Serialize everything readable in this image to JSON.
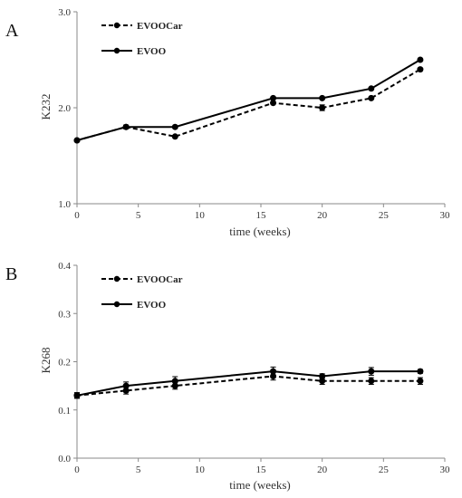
{
  "chart_data": [
    {
      "type": "line",
      "panel_label": "A",
      "xlabel": "time  (weeks)",
      "ylabel": "K232",
      "xlim": [
        0,
        30
      ],
      "ylim": [
        1.0,
        3.0
      ],
      "xticks": [
        0,
        5,
        10,
        15,
        20,
        25,
        30
      ],
      "yticks": [
        1.0,
        2.0,
        3.0
      ],
      "ytick_labels": [
        "1.0",
        "2.0",
        "3.0"
      ],
      "legend_position": "top-left",
      "grid": false,
      "x": [
        0,
        4,
        8,
        16,
        20,
        24,
        28
      ],
      "series": [
        {
          "name": "EVOOCar",
          "style": "dashed",
          "color": "#000000",
          "values": [
            1.66,
            1.8,
            1.7,
            2.05,
            2.0,
            2.1,
            2.4
          ],
          "errors": [
            0.01,
            0.01,
            0.01,
            0.01,
            0.03,
            0.01,
            0.01
          ]
        },
        {
          "name": "EVOO",
          "style": "solid",
          "color": "#000000",
          "values": [
            1.66,
            1.8,
            1.8,
            2.1,
            2.1,
            2.2,
            2.5
          ],
          "errors": [
            0.01,
            0.02,
            0.01,
            0.01,
            0.01,
            0.01,
            0.01
          ]
        }
      ]
    },
    {
      "type": "line",
      "panel_label": "B",
      "xlabel": "time  (weeks)",
      "ylabel": "K268",
      "xlim": [
        0,
        30
      ],
      "ylim": [
        0.0,
        0.4
      ],
      "xticks": [
        0,
        5,
        10,
        15,
        20,
        25,
        30
      ],
      "yticks": [
        0.0,
        0.1,
        0.2,
        0.3,
        0.4
      ],
      "ytick_labels": [
        "0.0",
        "0.1",
        "0.2",
        "0.3",
        "0.4"
      ],
      "legend_position": "top-left",
      "grid": false,
      "x": [
        0,
        4,
        8,
        16,
        20,
        24,
        28
      ],
      "series": [
        {
          "name": "EVOOCar",
          "style": "dashed",
          "color": "#000000",
          "values": [
            0.13,
            0.14,
            0.15,
            0.17,
            0.16,
            0.16,
            0.16
          ],
          "errors": [
            0.005,
            0.007,
            0.007,
            0.008,
            0.007,
            0.007,
            0.007
          ]
        },
        {
          "name": "EVOO",
          "style": "solid",
          "color": "#000000",
          "values": [
            0.13,
            0.15,
            0.16,
            0.18,
            0.17,
            0.18,
            0.18
          ],
          "errors": [
            0.006,
            0.008,
            0.009,
            0.009,
            0.005,
            0.008,
            0.004
          ]
        }
      ]
    }
  ]
}
